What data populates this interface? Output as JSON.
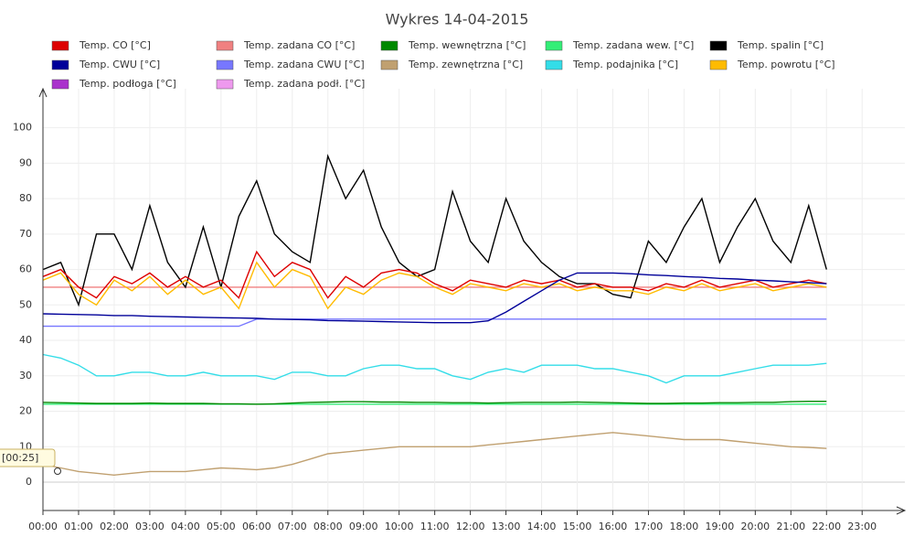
{
  "chart_data": {
    "type": "line",
    "title": "Wykres 14-04-2015",
    "tooltip": "[00:25]",
    "x": [
      0,
      0.5,
      1,
      1.5,
      2,
      2.5,
      3,
      3.5,
      4,
      4.5,
      5,
      5.5,
      6,
      6.5,
      7,
      7.5,
      8,
      8.5,
      9,
      9.5,
      10,
      10.5,
      11,
      11.5,
      12,
      12.5,
      13,
      13.5,
      14,
      14.5,
      15,
      15.5,
      16,
      16.5,
      17,
      17.5,
      18,
      18.5,
      19,
      19.5,
      20,
      20.5,
      21,
      21.5,
      22
    ],
    "xlim": [
      0,
      24.2
    ],
    "xticks": [
      {
        "value": 0,
        "label": "00:00"
      },
      {
        "value": 1,
        "label": "01:00"
      },
      {
        "value": 2,
        "label": "02:00"
      },
      {
        "value": 3,
        "label": "03:00"
      },
      {
        "value": 4,
        "label": "04:00"
      },
      {
        "value": 5,
        "label": "05:00"
      },
      {
        "value": 6,
        "label": "06:00"
      },
      {
        "value": 7,
        "label": "07:00"
      },
      {
        "value": 8,
        "label": "08:00"
      },
      {
        "value": 9,
        "label": "09:00"
      },
      {
        "value": 10,
        "label": "10:00"
      },
      {
        "value": 11,
        "label": "11:00"
      },
      {
        "value": 12,
        "label": "12:00"
      },
      {
        "value": 13,
        "label": "13:00"
      },
      {
        "value": 14,
        "label": "14:00"
      },
      {
        "value": 15,
        "label": "15:00"
      },
      {
        "value": 16,
        "label": "16:00"
      },
      {
        "value": 17,
        "label": "17:00"
      },
      {
        "value": 18,
        "label": "18:00"
      },
      {
        "value": 19,
        "label": "19:00"
      },
      {
        "value": 20,
        "label": "20:00"
      },
      {
        "value": 21,
        "label": "21:00"
      },
      {
        "value": 22,
        "label": "22:00"
      },
      {
        "value": 23,
        "label": "23:00"
      }
    ],
    "ylim": [
      -8,
      111
    ],
    "yticks": [
      0,
      10,
      20,
      30,
      40,
      50,
      60,
      70,
      80,
      90,
      100
    ],
    "grid": true,
    "series": [
      {
        "name": "Temp. zadana CO [°C]",
        "color": "#f08080",
        "values": [
          55,
          55,
          55,
          55,
          55,
          55,
          55,
          55,
          55,
          55,
          55,
          55,
          55,
          55,
          55,
          55,
          55,
          55,
          55,
          55,
          55,
          55,
          55,
          55,
          55,
          55,
          55,
          55,
          55,
          55,
          55,
          55,
          55,
          55,
          55,
          55,
          55,
          55,
          55,
          55,
          55,
          55,
          55,
          55,
          55
        ]
      },
      {
        "name": "Temp. zadana wew. [°C]",
        "color": "#33ee77",
        "values": [
          22,
          22,
          22,
          22,
          22,
          22,
          22,
          22,
          22,
          22,
          22,
          22,
          22,
          22,
          22,
          22,
          22,
          22,
          22,
          22,
          22,
          22,
          22,
          22,
          22,
          22,
          22,
          22,
          22,
          22,
          22,
          22,
          22,
          22,
          22,
          22,
          22,
          22,
          22,
          22,
          22,
          22,
          22,
          22,
          22
        ]
      },
      {
        "name": "Temp. zadana CWU [°C]",
        "color": "#7777ff",
        "values": [
          44,
          44,
          44,
          44,
          44,
          44,
          44,
          44,
          44,
          44,
          44,
          44,
          46,
          46,
          46,
          46,
          46,
          46,
          46,
          46,
          46,
          46,
          46,
          46,
          46,
          46,
          46,
          46,
          46,
          46,
          46,
          46,
          46,
          46,
          46,
          46,
          46,
          46,
          46,
          46,
          46,
          46,
          46,
          46,
          46
        ]
      },
      {
        "name": "Temp. spalin [°C]",
        "color": "#000000",
        "values": [
          60,
          62,
          50,
          70,
          70,
          60,
          78,
          62,
          55,
          72,
          55,
          75,
          85,
          70,
          65,
          62,
          92,
          80,
          88,
          72,
          62,
          58,
          60,
          82,
          68,
          62,
          80,
          68,
          62,
          58,
          56,
          56,
          53,
          52,
          68,
          62,
          72,
          80,
          62,
          72,
          80,
          68,
          62,
          78,
          60
        ]
      },
      {
        "name": "Temp. CO [°C]",
        "color": "#dd0000",
        "values": [
          58,
          60,
          55,
          52,
          58,
          56,
          59,
          55,
          58,
          55,
          57,
          52,
          65,
          58,
          62,
          60,
          52,
          58,
          55,
          59,
          60,
          59,
          56,
          54,
          57,
          56,
          55,
          57,
          56,
          57,
          55,
          56,
          55,
          55,
          54,
          56,
          55,
          57,
          55,
          56,
          57,
          55,
          56,
          57,
          56
        ]
      },
      {
        "name": "Temp. powrotu [°C]",
        "color": "#ffbb00",
        "values": [
          57,
          59,
          53,
          50,
          57,
          54,
          58,
          53,
          57,
          53,
          55,
          49,
          62,
          55,
          60,
          58,
          49,
          55,
          53,
          57,
          59,
          58,
          55,
          53,
          56,
          55,
          54,
          56,
          55,
          56,
          54,
          55,
          54,
          54,
          53,
          55,
          54,
          56,
          54,
          55,
          56,
          54,
          55,
          56,
          55
        ]
      },
      {
        "name": "Temp. wewnętrzna [°C]",
        "color": "#008800",
        "values": [
          22.5,
          22.4,
          22.3,
          22.2,
          22.2,
          22.2,
          22.3,
          22.2,
          22.2,
          22.2,
          22.1,
          22.1,
          22,
          22.1,
          22.3,
          22.5,
          22.6,
          22.7,
          22.7,
          22.6,
          22.6,
          22.5,
          22.5,
          22.4,
          22.4,
          22.3,
          22.4,
          22.5,
          22.5,
          22.5,
          22.6,
          22.5,
          22.4,
          22.3,
          22.2,
          22.2,
          22.3,
          22.3,
          22.4,
          22.4,
          22.5,
          22.5,
          22.7,
          22.8,
          22.8
        ]
      },
      {
        "name": "Temp. CWU [°C]",
        "color": "#000099",
        "values": [
          47.5,
          47.4,
          47.3,
          47.2,
          47,
          47,
          46.8,
          46.7,
          46.6,
          46.5,
          46.4,
          46.3,
          46.2,
          46,
          45.9,
          45.8,
          45.6,
          45.5,
          45.4,
          45.3,
          45.2,
          45.1,
          45,
          45,
          45,
          45.5,
          48,
          51,
          54,
          57,
          59,
          59,
          59,
          58.8,
          58.5,
          58.3,
          58,
          57.8,
          57.5,
          57.3,
          57,
          56.8,
          56.5,
          56.3,
          56
        ]
      },
      {
        "name": "Temp. zewnętrzna [°C]",
        "color": "#c0a070",
        "values": [
          5,
          4,
          3,
          2.5,
          2,
          2.5,
          3,
          3,
          3,
          3.5,
          4,
          3.8,
          3.5,
          4,
          5,
          6.5,
          8,
          8.5,
          9,
          9.5,
          10,
          10,
          10,
          10,
          10,
          10.5,
          11,
          11.5,
          12,
          12.5,
          13,
          13.5,
          14,
          13.5,
          13,
          12.5,
          12,
          12,
          12,
          11.5,
          11,
          10.5,
          10,
          9.8,
          9.5
        ]
      },
      {
        "name": "Temp. podajnika [°C]",
        "color": "#33dde8",
        "values": [
          36,
          35,
          33,
          30,
          30,
          31,
          31,
          30,
          30,
          31,
          30,
          30,
          30,
          29,
          31,
          31,
          30,
          30,
          32,
          33,
          33,
          32,
          32,
          30,
          29,
          31,
          32,
          31,
          33,
          33,
          33,
          32,
          32,
          31,
          30,
          28,
          30,
          30,
          30,
          31,
          32,
          33,
          33,
          33,
          33.5
        ]
      },
      {
        "name": "Temp. podłoga [°C]",
        "color": "#aa33cc",
        "values": [
          null,
          null,
          null,
          null,
          null,
          null,
          null,
          null,
          null,
          null,
          null,
          null,
          null,
          null,
          null,
          null,
          null,
          null,
          null,
          null,
          null,
          null,
          null,
          null,
          null,
          null,
          null,
          null,
          null,
          null,
          null,
          null,
          null,
          null,
          null,
          null,
          null,
          null,
          null,
          null,
          null,
          null,
          null,
          null,
          null
        ]
      },
      {
        "name": "Temp. zadana podł. [°C]",
        "color": "#ee99ee",
        "values": [
          null,
          null,
          null,
          null,
          null,
          null,
          null,
          null,
          null,
          null,
          null,
          null,
          null,
          null,
          null,
          null,
          null,
          null,
          null,
          null,
          null,
          null,
          null,
          null,
          null,
          null,
          null,
          null,
          null,
          null,
          null,
          null,
          null,
          null,
          null,
          null,
          null,
          null,
          null,
          null,
          null,
          null,
          null,
          null,
          null
        ]
      }
    ],
    "legend_order": [
      4,
      0,
      6,
      1,
      3,
      7,
      2,
      8,
      9,
      5,
      10,
      11
    ]
  }
}
